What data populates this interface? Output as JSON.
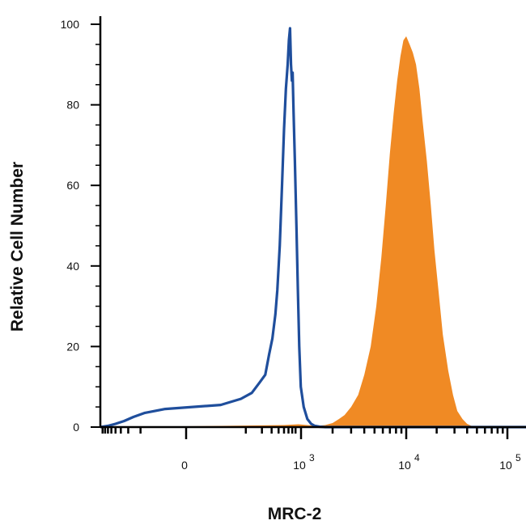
{
  "chart_data": {
    "type": "area",
    "title": "",
    "xlabel": "MRC-2",
    "ylabel": "Relative Cell Number",
    "x_scale": "biexponential",
    "y_scale": "linear",
    "ylim": [
      0,
      100
    ],
    "y_ticks": [
      {
        "value": 0,
        "label": "0"
      },
      {
        "value": 20,
        "label": "20"
      },
      {
        "value": 40,
        "label": "40"
      },
      {
        "value": 60,
        "label": "60"
      },
      {
        "value": 80,
        "label": "80"
      },
      {
        "value": 100,
        "label": "100"
      }
    ],
    "x_ticks": [
      {
        "value": 0,
        "base": "0",
        "exp": ""
      },
      {
        "value": 1000,
        "base": "10",
        "exp": "3"
      },
      {
        "value": 10000,
        "base": "10",
        "exp": "4"
      },
      {
        "value": 100000,
        "base": "10",
        "exp": "5"
      }
    ],
    "grid": false,
    "legend": "none",
    "series": [
      {
        "style": "outline",
        "color": "#1f4e9c",
        "x": [
          -900,
          -600,
          -400,
          -250,
          -150,
          -80,
          -20,
          30,
          80,
          130,
          180,
          230,
          270,
          310,
          350,
          380,
          420,
          460,
          500,
          540,
          580,
          610,
          640,
          665,
          690,
          710,
          740,
          780,
          830,
          880,
          930,
          990,
          1060,
          1150,
          1250,
          1350,
          1500,
          1700,
          2000,
          3000,
          10000,
          150000
        ],
        "y": [
          0,
          0.3,
          0.8,
          1.5,
          2.5,
          3.5,
          4.5,
          5.5,
          7,
          8.5,
          11,
          13,
          18,
          22,
          28,
          34,
          45,
          60,
          74,
          84,
          90,
          96,
          99,
          90,
          86,
          88,
          78,
          66,
          50,
          34,
          20,
          10,
          5,
          2,
          0.8,
          0.3,
          0.1,
          0,
          0,
          0,
          0,
          0
        ]
      },
      {
        "style": "filled",
        "color": "#f08a24",
        "x": [
          -900,
          -400,
          0,
          500,
          900,
          1400,
          1700,
          2000,
          2300,
          2600,
          3000,
          3500,
          4000,
          4600,
          5200,
          5800,
          6400,
          7000,
          7600,
          8200,
          8800,
          9400,
          10000,
          10800,
          11600,
          12500,
          13500,
          14500,
          16000,
          17500,
          19000,
          21000,
          23000,
          26000,
          29000,
          32000,
          36000,
          40000,
          45000,
          150000
        ],
        "y": [
          0,
          0.1,
          0.2,
          0.5,
          0.7,
          0.3,
          0.5,
          1,
          2,
          3,
          5,
          8,
          13,
          20,
          30,
          42,
          55,
          68,
          78,
          86,
          92,
          96,
          97,
          95,
          93,
          90,
          84,
          76,
          66,
          55,
          44,
          33,
          23,
          14,
          8,
          4,
          2,
          0.8,
          0.2,
          0
        ]
      }
    ]
  }
}
